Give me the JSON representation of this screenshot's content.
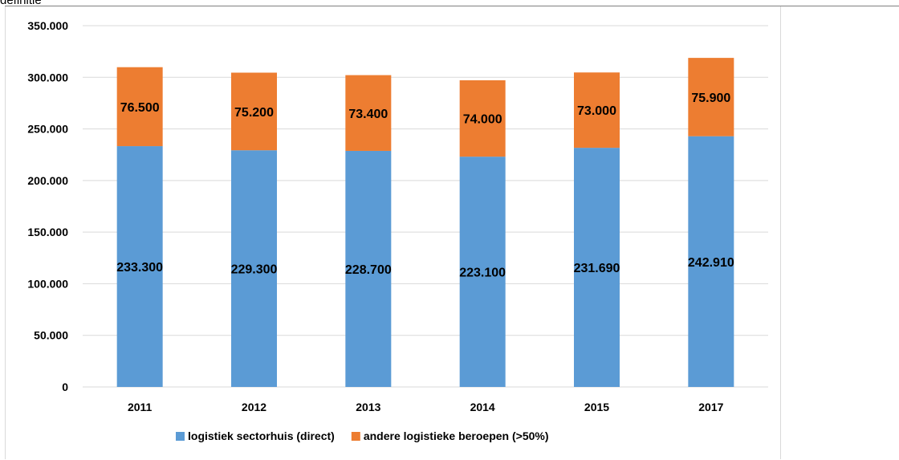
{
  "top_text": "definitie",
  "chart_data": {
    "type": "bar",
    "stacked": true,
    "categories": [
      "2011",
      "2012",
      "2013",
      "2014",
      "2015",
      "2017"
    ],
    "series": [
      {
        "name": "logistiek sectorhuis (direct)",
        "values": [
          233300,
          229300,
          228700,
          223100,
          231690,
          242910
        ],
        "labels": [
          "233.300",
          "229.300",
          "228.700",
          "223.100",
          "231.690",
          "242.910"
        ],
        "color": "#5b9bd5"
      },
      {
        "name": "andere logistieke beroepen (>50%)",
        "values": [
          76500,
          75200,
          73400,
          74000,
          73000,
          75900
        ],
        "labels": [
          "76.500",
          "75.200",
          "73.400",
          "74.000",
          "73.000",
          "75.900"
        ],
        "color": "#ed7d31"
      }
    ],
    "ylim": [
      0,
      350000
    ],
    "y_ticks": [
      0,
      50000,
      100000,
      150000,
      200000,
      250000,
      300000,
      350000
    ],
    "y_tick_labels": [
      "0",
      "50.000",
      "100.000",
      "150.000",
      "200.000",
      "250.000",
      "300.000",
      "350.000"
    ],
    "grid": true,
    "gridline_color": "#d9d9d9",
    "legend_position": "bottom"
  }
}
